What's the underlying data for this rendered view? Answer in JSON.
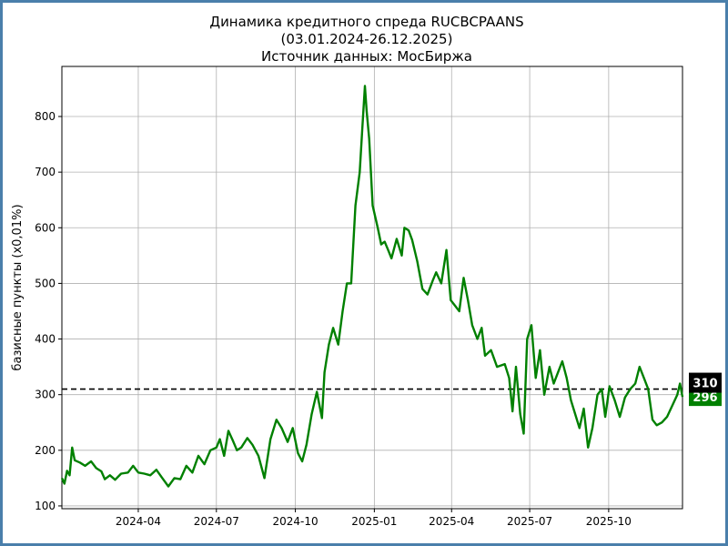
{
  "chart_data": {
    "type": "line",
    "title": "Динамика кредитного спреда RUCBCPAANS",
    "subtitle": "(03.01.2024-26.12.2025)",
    "source": "Источник данных: МосБиржа",
    "xlabel": "",
    "ylabel": "базисные пункты (x0,01%)",
    "xlim": [
      "2024-01-03",
      "2025-12-26"
    ],
    "ylim": [
      95,
      890
    ],
    "grid": true,
    "x_ticks": [
      "2024-04",
      "2024-07",
      "2024-10",
      "2025-01",
      "2025-04",
      "2025-07",
      "2025-10"
    ],
    "y_ticks": [
      100,
      200,
      300,
      400,
      500,
      600,
      700,
      800
    ],
    "reference_line": {
      "value": 310,
      "label": "310",
      "style": "dashed",
      "color": "#000000"
    },
    "last_value": {
      "value": 296,
      "label": "296",
      "color": "#008000"
    },
    "series": [
      {
        "color": "#008000",
        "points": [
          [
            "2024-01-03",
            150
          ],
          [
            "2024-01-06",
            140
          ],
          [
            "2024-01-09",
            163
          ],
          [
            "2024-01-12",
            155
          ],
          [
            "2024-01-15",
            205
          ],
          [
            "2024-01-18",
            182
          ],
          [
            "2024-01-24",
            178
          ],
          [
            "2024-01-30",
            172
          ],
          [
            "2024-02-06",
            180
          ],
          [
            "2024-02-12",
            168
          ],
          [
            "2024-02-18",
            162
          ],
          [
            "2024-02-22",
            148
          ],
          [
            "2024-02-28",
            155
          ],
          [
            "2024-03-05",
            147
          ],
          [
            "2024-03-12",
            158
          ],
          [
            "2024-03-20",
            160
          ],
          [
            "2024-03-26",
            172
          ],
          [
            "2024-04-01",
            160
          ],
          [
            "2024-04-08",
            158
          ],
          [
            "2024-04-15",
            155
          ],
          [
            "2024-04-22",
            165
          ],
          [
            "2024-04-29",
            150
          ],
          [
            "2024-05-06",
            135
          ],
          [
            "2024-05-13",
            150
          ],
          [
            "2024-05-20",
            148
          ],
          [
            "2024-05-27",
            172
          ],
          [
            "2024-06-03",
            160
          ],
          [
            "2024-06-10",
            190
          ],
          [
            "2024-06-17",
            175
          ],
          [
            "2024-06-24",
            200
          ],
          [
            "2024-07-01",
            205
          ],
          [
            "2024-07-05",
            220
          ],
          [
            "2024-07-10",
            190
          ],
          [
            "2024-07-15",
            235
          ],
          [
            "2024-07-20",
            218
          ],
          [
            "2024-07-25",
            200
          ],
          [
            "2024-07-30",
            205
          ],
          [
            "2024-08-06",
            222
          ],
          [
            "2024-08-12",
            210
          ],
          [
            "2024-08-19",
            190
          ],
          [
            "2024-08-26",
            150
          ],
          [
            "2024-09-02",
            220
          ],
          [
            "2024-09-09",
            255
          ],
          [
            "2024-09-15",
            240
          ],
          [
            "2024-09-22",
            215
          ],
          [
            "2024-09-28",
            240
          ],
          [
            "2024-10-04",
            195
          ],
          [
            "2024-10-09",
            180
          ],
          [
            "2024-10-14",
            210
          ],
          [
            "2024-10-20",
            265
          ],
          [
            "2024-10-26",
            305
          ],
          [
            "2024-11-01",
            258
          ],
          [
            "2024-11-04",
            340
          ],
          [
            "2024-11-09",
            390
          ],
          [
            "2024-11-14",
            420
          ],
          [
            "2024-11-20",
            390
          ],
          [
            "2024-11-25",
            450
          ],
          [
            "2024-11-30",
            500
          ],
          [
            "2024-12-05",
            500
          ],
          [
            "2024-12-10",
            640
          ],
          [
            "2024-12-15",
            700
          ],
          [
            "2024-12-18",
            780
          ],
          [
            "2024-12-21",
            855
          ],
          [
            "2024-12-23",
            810
          ],
          [
            "2024-12-26",
            760
          ],
          [
            "2024-12-30",
            640
          ],
          [
            "2025-01-05",
            600
          ],
          [
            "2025-01-09",
            570
          ],
          [
            "2025-01-13",
            575
          ],
          [
            "2025-01-17",
            560
          ],
          [
            "2025-01-21",
            545
          ],
          [
            "2025-01-27",
            580
          ],
          [
            "2025-02-02",
            550
          ],
          [
            "2025-02-05",
            600
          ],
          [
            "2025-02-10",
            595
          ],
          [
            "2025-02-14",
            578
          ],
          [
            "2025-02-20",
            540
          ],
          [
            "2025-02-26",
            490
          ],
          [
            "2025-03-04",
            480
          ],
          [
            "2025-03-10",
            505
          ],
          [
            "2025-03-14",
            520
          ],
          [
            "2025-03-20",
            500
          ],
          [
            "2025-03-26",
            560
          ],
          [
            "2025-03-31",
            470
          ],
          [
            "2025-04-05",
            460
          ],
          [
            "2025-04-10",
            450
          ],
          [
            "2025-04-15",
            510
          ],
          [
            "2025-04-20",
            470
          ],
          [
            "2025-04-25",
            425
          ],
          [
            "2025-05-01",
            400
          ],
          [
            "2025-05-06",
            420
          ],
          [
            "2025-05-10",
            370
          ],
          [
            "2025-05-17",
            380
          ],
          [
            "2025-05-24",
            350
          ],
          [
            "2025-06-02",
            355
          ],
          [
            "2025-06-07",
            330
          ],
          [
            "2025-06-11",
            270
          ],
          [
            "2025-06-15",
            350
          ],
          [
            "2025-06-20",
            265
          ],
          [
            "2025-06-24",
            230
          ],
          [
            "2025-06-28",
            400
          ],
          [
            "2025-07-03",
            425
          ],
          [
            "2025-07-08",
            330
          ],
          [
            "2025-07-13",
            380
          ],
          [
            "2025-07-18",
            300
          ],
          [
            "2025-07-24",
            350
          ],
          [
            "2025-07-29",
            320
          ],
          [
            "2025-08-03",
            340
          ],
          [
            "2025-08-08",
            360
          ],
          [
            "2025-08-13",
            330
          ],
          [
            "2025-08-18",
            290
          ],
          [
            "2025-08-23",
            265
          ],
          [
            "2025-08-28",
            240
          ],
          [
            "2025-09-02",
            275
          ],
          [
            "2025-09-07",
            205
          ],
          [
            "2025-09-12",
            240
          ],
          [
            "2025-09-18",
            300
          ],
          [
            "2025-09-23",
            310
          ],
          [
            "2025-09-27",
            260
          ],
          [
            "2025-10-02",
            315
          ],
          [
            "2025-10-08",
            290
          ],
          [
            "2025-10-14",
            260
          ],
          [
            "2025-10-20",
            295
          ],
          [
            "2025-10-26",
            310
          ],
          [
            "2025-11-01",
            320
          ],
          [
            "2025-11-06",
            350
          ],
          [
            "2025-11-11",
            330
          ],
          [
            "2025-11-16",
            310
          ],
          [
            "2025-11-21",
            255
          ],
          [
            "2025-11-26",
            245
          ],
          [
            "2025-12-02",
            250
          ],
          [
            "2025-12-08",
            260
          ],
          [
            "2025-12-14",
            280
          ],
          [
            "2025-12-20",
            300
          ],
          [
            "2025-12-23",
            320
          ],
          [
            "2025-12-26",
            296
          ]
        ]
      }
    ]
  }
}
